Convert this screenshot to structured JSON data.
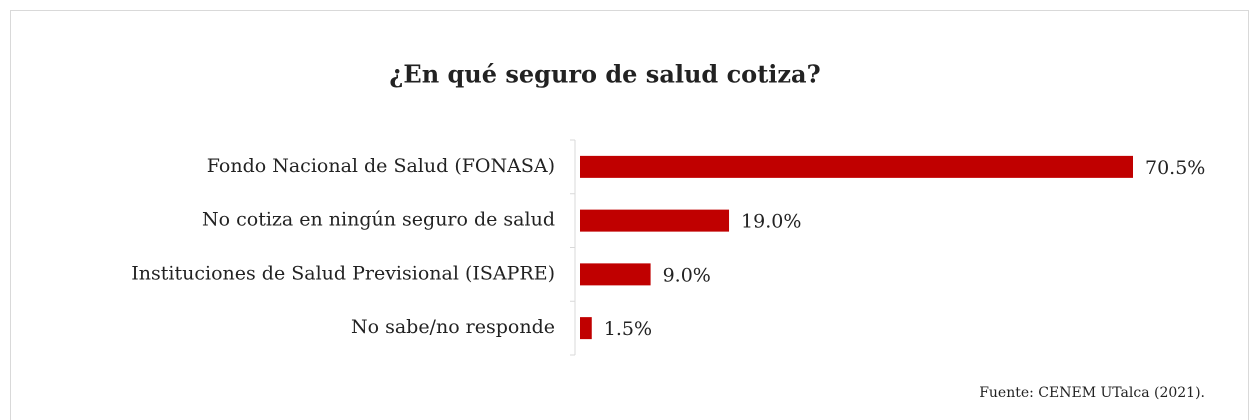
{
  "chart_data": {
    "type": "bar",
    "orientation": "horizontal",
    "title": "¿En qué seguro de salud cotiza?",
    "categories": [
      "Fondo Nacional de Salud (FONASA)",
      "No cotiza en ningún seguro de salud",
      "Instituciones de Salud Previsional (ISAPRE)",
      "No sabe/no responde"
    ],
    "values": [
      70.5,
      19.0,
      9.0,
      1.5
    ],
    "value_labels": [
      "70.5%",
      "19.0%",
      "9.0%",
      "1.5%"
    ],
    "color": "#c00000",
    "source": "Fuente: CENEM UTalca (2021)."
  }
}
